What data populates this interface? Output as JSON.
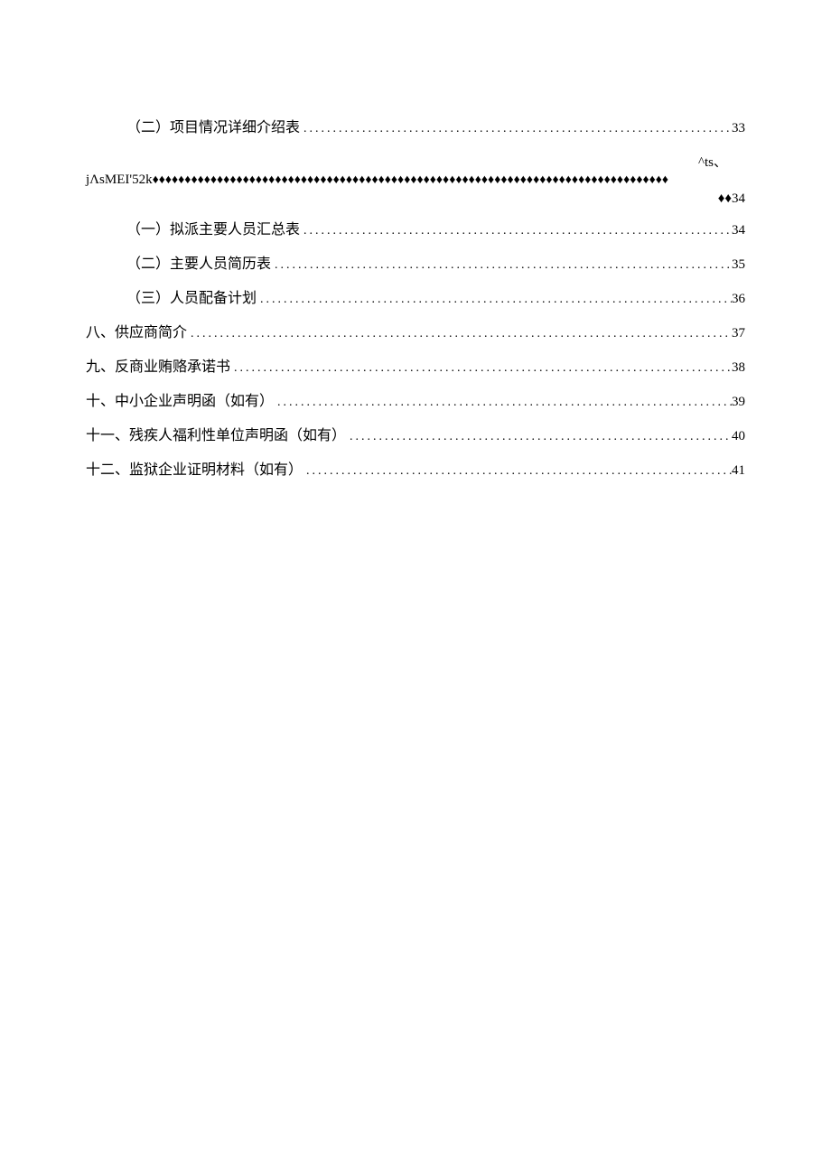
{
  "items": [
    {
      "level": 2,
      "label": "（二）项目情况详细介绍表",
      "page": "33",
      "style": "dots"
    }
  ],
  "special": {
    "prefix": "^ts、",
    "label": "jΛsMEI'52k",
    "diamond_fill": "♦♦♦♦♦♦♦♦♦♦♦♦♦♦♦♦♦♦♦♦♦♦♦♦♦♦♦♦♦♦♦♦♦♦♦♦♦♦♦♦♦♦♦♦♦♦♦♦♦♦♦♦♦♦♦♦♦♦♦♦♦♦♦♦♦♦♦♦♦♦♦♦♦♦♦♦♦♦♦♦",
    "suffix": "♦♦34"
  },
  "items_after": [
    {
      "level": 2,
      "label": "（一）拟派主要人员汇总表",
      "page": "34",
      "style": "dots"
    },
    {
      "level": 2,
      "label": "（二）主要人员简历表",
      "page": "35",
      "style": "dots"
    },
    {
      "level": 2,
      "label": "（三）人员配备计划",
      "page": "36",
      "style": "dots"
    },
    {
      "level": 1,
      "label": "八、供应商简介",
      "page": "37",
      "style": "dots"
    },
    {
      "level": 1,
      "label": "九、反商业贿赂承诺书",
      "page": "38",
      "style": "dots"
    },
    {
      "level": 1,
      "label": "十、中小企业声明函（如有）",
      "page": "39",
      "style": "dots"
    },
    {
      "level": 1,
      "label": "十一、残疾人福利性单位声明函（如有）",
      "page": "40",
      "style": "dots"
    },
    {
      "level": 1,
      "label": "十二、监狱企业证明材料（如有）",
      "page": "41",
      "style": "dots"
    }
  ],
  "dot_fill": "..................................................................................................................."
}
